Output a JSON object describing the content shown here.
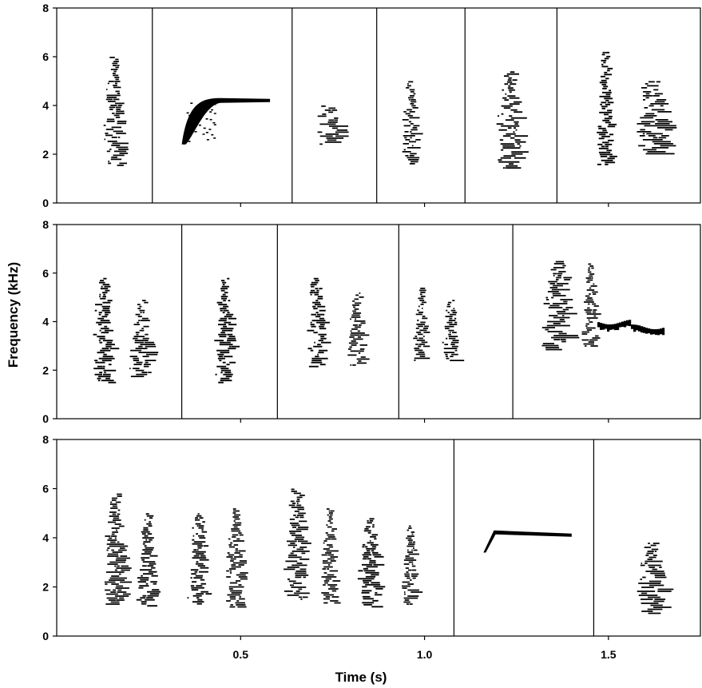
{
  "chart_data": {
    "type": "spectrogram",
    "xlabel": "Time (s)",
    "ylabel": "Frequency (kHz)",
    "xlim": [
      0,
      1.75
    ],
    "ylim": [
      0,
      8
    ],
    "xticks": [
      0.5,
      1.0,
      1.5
    ],
    "xtick_labels": [
      "0.5",
      "1.0",
      "1.5"
    ],
    "yticks": [
      0,
      2,
      4,
      6,
      8
    ],
    "ytick_labels": [
      "0",
      "2",
      "4",
      "6",
      "8"
    ],
    "grid": false,
    "panels": [
      {
        "dividers": [
          0.26,
          0.64,
          0.87,
          1.11,
          1.36
        ],
        "notes": [
          {
            "shape": "column",
            "t0": 0.13,
            "t1": 0.18,
            "f0": 1.5,
            "f1": 6.0
          },
          {
            "shape": "sweep",
            "t0": 0.34,
            "t1": 0.58,
            "f0": 2.4,
            "f1": 4.3
          },
          {
            "shape": "column",
            "t0": 0.7,
            "t1": 0.78,
            "f0": 2.4,
            "f1": 4.0
          },
          {
            "shape": "column",
            "t0": 0.94,
            "t1": 0.98,
            "f0": 1.6,
            "f1": 5.0
          },
          {
            "shape": "column",
            "t0": 1.2,
            "t1": 1.27,
            "f0": 1.4,
            "f1": 5.4
          },
          {
            "shape": "column",
            "t0": 1.47,
            "t1": 1.51,
            "f0": 1.6,
            "f1": 6.2
          },
          {
            "shape": "column",
            "t0": 1.57,
            "t1": 1.67,
            "f0": 2.0,
            "f1": 5.0
          }
        ]
      },
      {
        "dividers": [
          0.34,
          0.6,
          0.93,
          1.24
        ],
        "notes": [
          {
            "shape": "column",
            "t0": 0.1,
            "t1": 0.15,
            "f0": 1.5,
            "f1": 5.8
          },
          {
            "shape": "column",
            "t0": 0.2,
            "t1": 0.26,
            "f0": 1.7,
            "f1": 4.9
          },
          {
            "shape": "column",
            "t0": 0.43,
            "t1": 0.48,
            "f0": 1.5,
            "f1": 5.8
          },
          {
            "shape": "column",
            "t0": 0.68,
            "t1": 0.73,
            "f0": 2.1,
            "f1": 5.8
          },
          {
            "shape": "column",
            "t0": 0.79,
            "t1": 0.84,
            "f0": 2.2,
            "f1": 5.2
          },
          {
            "shape": "column",
            "t0": 0.97,
            "t1": 1.01,
            "f0": 2.4,
            "f1": 5.4
          },
          {
            "shape": "column",
            "t0": 1.05,
            "t1": 1.09,
            "f0": 2.4,
            "f1": 4.9
          },
          {
            "shape": "column",
            "t0": 1.32,
            "t1": 1.4,
            "f0": 2.8,
            "f1": 6.5
          },
          {
            "shape": "column",
            "t0": 1.43,
            "t1": 1.47,
            "f0": 3.0,
            "f1": 6.4
          },
          {
            "shape": "band",
            "t0": 1.47,
            "t1": 1.65,
            "f0": 3.4,
            "f1": 4.3
          }
        ]
      },
      {
        "dividers": [
          1.08,
          1.46
        ],
        "notes": [
          {
            "shape": "column",
            "t0": 0.13,
            "t1": 0.19,
            "f0": 1.3,
            "f1": 5.8
          },
          {
            "shape": "column",
            "t0": 0.22,
            "t1": 0.27,
            "f0": 1.2,
            "f1": 5.0
          },
          {
            "shape": "column",
            "t0": 0.36,
            "t1": 0.41,
            "f0": 1.3,
            "f1": 5.0
          },
          {
            "shape": "column",
            "t0": 0.46,
            "t1": 0.51,
            "f0": 1.2,
            "f1": 5.2
          },
          {
            "shape": "column",
            "t0": 0.62,
            "t1": 0.68,
            "f0": 1.5,
            "f1": 6.0
          },
          {
            "shape": "column",
            "t0": 0.72,
            "t1": 0.76,
            "f0": 1.3,
            "f1": 5.2
          },
          {
            "shape": "column",
            "t0": 0.82,
            "t1": 0.88,
            "f0": 1.2,
            "f1": 4.8
          },
          {
            "shape": "column",
            "t0": 0.94,
            "t1": 0.98,
            "f0": 1.3,
            "f1": 4.5
          },
          {
            "shape": "flat",
            "t0": 1.16,
            "t1": 1.4,
            "f0": 3.4,
            "f1": 4.3
          },
          {
            "shape": "column",
            "t0": 1.58,
            "t1": 1.66,
            "f0": 0.9,
            "f1": 3.8
          }
        ]
      }
    ]
  }
}
